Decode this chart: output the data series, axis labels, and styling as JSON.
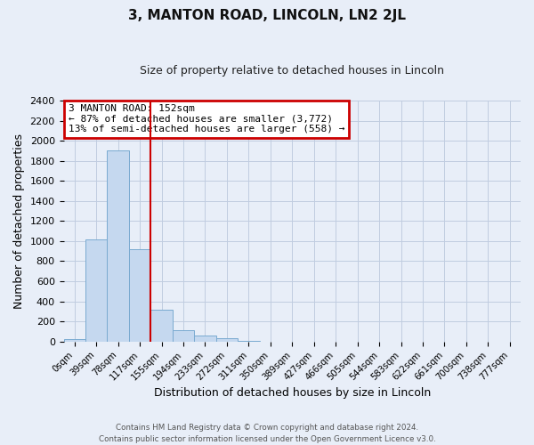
{
  "title": "3, MANTON ROAD, LINCOLN, LN2 2JL",
  "subtitle": "Size of property relative to detached houses in Lincoln",
  "xlabel": "Distribution of detached houses by size in Lincoln",
  "ylabel": "Number of detached properties",
  "footer_line1": "Contains HM Land Registry data © Crown copyright and database right 2024.",
  "footer_line2": "Contains public sector information licensed under the Open Government Licence v3.0.",
  "bar_labels": [
    "0sqm",
    "39sqm",
    "78sqm",
    "117sqm",
    "155sqm",
    "194sqm",
    "233sqm",
    "272sqm",
    "311sqm",
    "350sqm",
    "389sqm",
    "427sqm",
    "466sqm",
    "505sqm",
    "544sqm",
    "583sqm",
    "622sqm",
    "661sqm",
    "700sqm",
    "738sqm",
    "777sqm"
  ],
  "bar_values": [
    20,
    1020,
    1900,
    920,
    320,
    110,
    55,
    30,
    5,
    0,
    0,
    0,
    0,
    0,
    0,
    0,
    0,
    0,
    0,
    0,
    0
  ],
  "bar_color": "#c5d8ef",
  "bar_edge_color": "#7aaad0",
  "ylim": [
    0,
    2400
  ],
  "yticks": [
    0,
    200,
    400,
    600,
    800,
    1000,
    1200,
    1400,
    1600,
    1800,
    2000,
    2200,
    2400
  ],
  "vline_color": "#cc0000",
  "vline_pos": 3.5,
  "annotation_title": "3 MANTON ROAD: 152sqm",
  "annotation_line1": "← 87% of detached houses are smaller (3,772)",
  "annotation_line2": "13% of semi-detached houses are larger (558) →",
  "annotation_box_color": "#cc0000",
  "bg_color": "#e8eef8",
  "plot_bg_color": "#e8eef8",
  "grid_color": "#c0cce0",
  "title_fontsize": 11,
  "subtitle_fontsize": 9
}
